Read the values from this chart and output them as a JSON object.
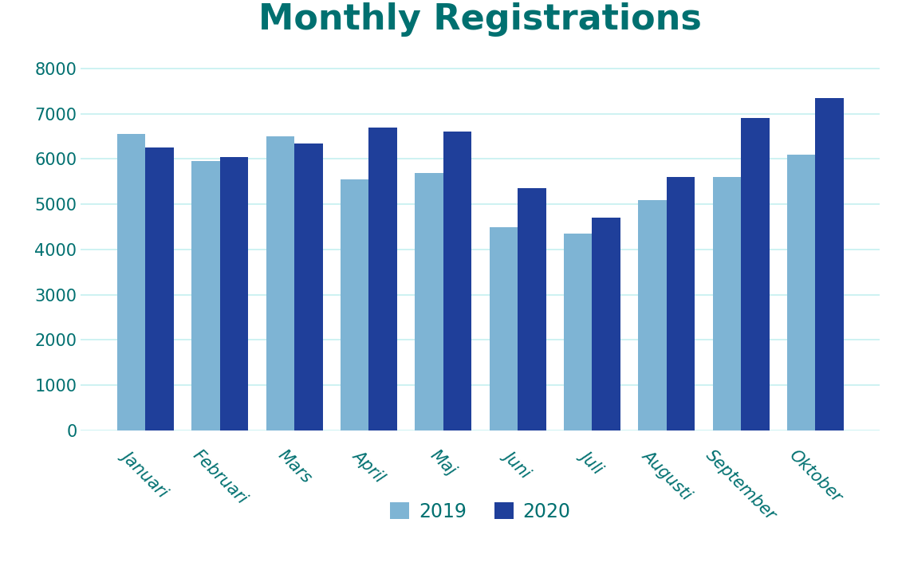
{
  "title": "Monthly Registrations",
  "title_color": "#007070",
  "title_fontsize": 32,
  "title_fontweight": "bold",
  "categories": [
    "Januari",
    "Februari",
    "Mars",
    "April",
    "Maj",
    "Juni",
    "Juli",
    "Augusti",
    "September",
    "Oktober"
  ],
  "values_2019": [
    6550,
    5950,
    6500,
    5550,
    5700,
    4500,
    4350,
    5100,
    5600,
    6100
  ],
  "values_2020": [
    6250,
    6050,
    6350,
    6700,
    6600,
    5350,
    4700,
    5600,
    6900,
    7350
  ],
  "color_2019": "#7EB4D4",
  "color_2020": "#1F3F9A",
  "legend_labels": [
    "2019",
    "2020"
  ],
  "ylim": [
    0,
    8500
  ],
  "yticks": [
    0,
    1000,
    2000,
    3000,
    4000,
    5000,
    6000,
    7000,
    8000
  ],
  "ylabel": "",
  "xlabel": "",
  "background_color": "#ffffff",
  "grid_color": "#C5F0F0",
  "tick_color": "#007070",
  "tick_fontsize": 15,
  "bar_width": 0.38,
  "figsize": [
    11.26,
    7.2
  ],
  "dpi": 100
}
